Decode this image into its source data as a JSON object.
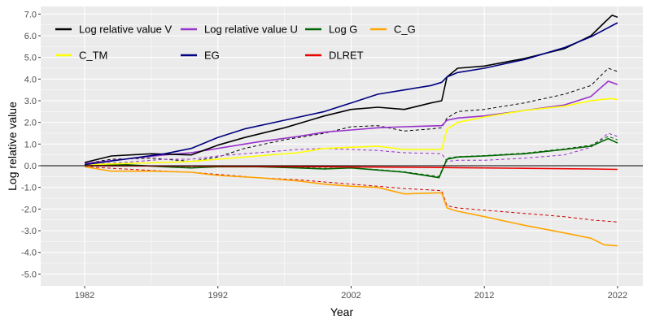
{
  "chart_data": {
    "type": "line",
    "title": "",
    "xlabel": "Year",
    "ylabel": "Log relative value",
    "xlim": [
      1978.7,
      2023.9
    ],
    "ylim": [
      -5.55,
      7.35
    ],
    "x_ticks": [
      1982,
      1992,
      2002,
      2012,
      2022
    ],
    "x_tick_labels": [
      "1982",
      "1992",
      "2002",
      "2012",
      "2022"
    ],
    "y_ticks": [
      -5,
      -4,
      -3,
      -2,
      -1,
      0,
      1,
      2,
      3,
      4,
      5,
      6,
      7
    ],
    "y_tick_labels": [
      "-5.0",
      "-4.0",
      "-3.0",
      "-2.0",
      "-1.0",
      "0.0",
      "1.0",
      "2.0",
      "3.0",
      "4.0",
      "5.0",
      "6.0",
      "7.0"
    ],
    "background": "#ebebeb",
    "grid_color": "#ffffff",
    "zero_line": 0,
    "legend_position": "top-left",
    "series": [
      {
        "name": "Log relative value V",
        "color": "#000000",
        "dashed": false,
        "in_legend": true,
        "x": [
          1982,
          1984,
          1987,
          1990,
          1992,
          1994,
          1997,
          2000,
          2002,
          2004,
          2006,
          2008,
          2008.8,
          2009.2,
          2010,
          2012,
          2015,
          2018,
          2020,
          2021,
          2021.6,
          2022
        ],
        "y": [
          0.15,
          0.45,
          0.55,
          0.5,
          0.95,
          1.3,
          1.75,
          2.3,
          2.6,
          2.7,
          2.6,
          2.9,
          3.0,
          4.1,
          4.5,
          4.6,
          4.95,
          5.4,
          6.0,
          6.6,
          6.95,
          6.85
        ]
      },
      {
        "name": "Log relative value V (dashed)",
        "color": "#000000",
        "dashed": true,
        "in_legend": false,
        "x": [
          1982,
          1984,
          1987,
          1990,
          1992,
          1994,
          1997,
          2000,
          2002,
          2004,
          2006,
          2008,
          2008.8,
          2009.2,
          2010,
          2012,
          2015,
          2018,
          2020,
          2021.3,
          2022
        ],
        "y": [
          0.1,
          0.3,
          0.35,
          0.2,
          0.4,
          0.8,
          1.2,
          1.5,
          1.8,
          1.85,
          1.6,
          1.7,
          1.75,
          2.2,
          2.5,
          2.6,
          2.9,
          3.3,
          3.7,
          4.5,
          4.35
        ]
      },
      {
        "name": "Log relative value U",
        "color": "#9932cc",
        "dashed": false,
        "in_legend": true,
        "x": [
          1982,
          1985,
          1988,
          1990,
          1992,
          1995,
          1998,
          2000,
          2002,
          2004,
          2006,
          2008.8,
          2009.2,
          2010,
          2012,
          2015,
          2018,
          2020,
          2021.3,
          2022
        ],
        "y": [
          0.1,
          0.3,
          0.5,
          0.6,
          0.8,
          1.1,
          1.35,
          1.55,
          1.65,
          1.75,
          1.8,
          1.85,
          2.1,
          2.2,
          2.3,
          2.55,
          2.8,
          3.2,
          3.9,
          3.75
        ]
      },
      {
        "name": "Log relative value U (dashed)",
        "color": "#9932cc",
        "dashed": true,
        "in_legend": false,
        "x": [
          1982,
          1985,
          1988,
          1990,
          1992,
          1995,
          1998,
          2000,
          2002,
          2004,
          2006,
          2008.8,
          2009.2,
          2010,
          2012,
          2015,
          2018,
          2020,
          2021.3,
          2022
        ],
        "y": [
          0.05,
          0.15,
          0.3,
          0.3,
          0.45,
          0.6,
          0.75,
          0.8,
          0.75,
          0.7,
          0.6,
          0.55,
          0.2,
          0.25,
          0.25,
          0.35,
          0.5,
          0.85,
          1.5,
          1.35
        ]
      },
      {
        "name": "Log G",
        "color": "#006400",
        "dashed": false,
        "in_legend": true,
        "x": [
          1982,
          1985,
          1988,
          1990,
          1992,
          1995,
          1998,
          2000,
          2002,
          2004,
          2006,
          2008.6,
          2009.2,
          2010,
          2012,
          2015,
          2018,
          2020,
          2021.3,
          2022
        ],
        "y": [
          0.0,
          0.05,
          -0.05,
          -0.1,
          -0.05,
          -0.05,
          -0.1,
          -0.15,
          -0.1,
          -0.2,
          -0.3,
          -0.55,
          0.3,
          0.4,
          0.45,
          0.55,
          0.75,
          0.9,
          1.25,
          1.05
        ]
      },
      {
        "name": "Log G (dashed)",
        "color": "#006400",
        "dashed": true,
        "in_legend": false,
        "x": [
          1982,
          1985,
          1988,
          1990,
          1992,
          1995,
          1998,
          2000,
          2002,
          2004,
          2006,
          2008.6,
          2009.2,
          2010,
          2012,
          2015,
          2018,
          2020,
          2021.3,
          2022
        ],
        "y": [
          0.0,
          0.03,
          -0.03,
          -0.08,
          -0.05,
          -0.05,
          -0.08,
          -0.12,
          -0.1,
          -0.18,
          -0.28,
          -0.5,
          0.35,
          0.42,
          0.47,
          0.58,
          0.78,
          0.95,
          1.35,
          1.2
        ]
      },
      {
        "name": "C_G",
        "color": "#ffa500",
        "dashed": false,
        "in_legend": true,
        "x": [
          1982,
          1984,
          1987,
          1990,
          1992,
          1995,
          1998,
          2000,
          2002,
          2004,
          2006,
          2008.8,
          2009.2,
          2010,
          2012,
          2015,
          2018,
          2020,
          2021,
          2022
        ],
        "y": [
          -0.05,
          -0.25,
          -0.25,
          -0.3,
          -0.45,
          -0.55,
          -0.7,
          -0.85,
          -0.95,
          -1.0,
          -1.3,
          -1.25,
          -1.95,
          -2.1,
          -2.35,
          -2.75,
          -3.1,
          -3.35,
          -3.65,
          -3.7
        ]
      },
      {
        "name": "C_G (dashed)",
        "color": "#cc0000",
        "dashed": true,
        "in_legend": false,
        "x": [
          1982,
          1985,
          1988,
          1990,
          1992,
          1995,
          1998,
          2000,
          2002,
          2004,
          2006,
          2008.8,
          2009.2,
          2010,
          2012,
          2015,
          2018,
          2020,
          2022
        ],
        "y": [
          -0.05,
          -0.15,
          -0.25,
          -0.3,
          -0.4,
          -0.55,
          -0.65,
          -0.75,
          -0.85,
          -0.95,
          -1.05,
          -1.15,
          -1.85,
          -1.95,
          -2.05,
          -2.2,
          -2.35,
          -2.5,
          -2.6
        ]
      },
      {
        "name": "C_TM",
        "color": "#ffff00",
        "dashed": false,
        "in_legend": true,
        "x": [
          1982,
          1985,
          1988,
          1990,
          1992,
          1995,
          1998,
          2000,
          2002,
          2004,
          2006,
          2008.8,
          2009.2,
          2010,
          2012,
          2015,
          2018,
          2020,
          2021.5,
          2022
        ],
        "y": [
          0.05,
          0.1,
          0.15,
          0.2,
          0.3,
          0.45,
          0.6,
          0.8,
          0.85,
          0.9,
          0.75,
          0.75,
          1.7,
          2.0,
          2.25,
          2.55,
          2.75,
          3.0,
          3.1,
          3.05
        ]
      },
      {
        "name": "EG",
        "color": "#000080",
        "dashed": false,
        "in_legend": true,
        "x": [
          1982,
          1985,
          1988,
          1990,
          1992,
          1994,
          1997,
          2000,
          2002,
          2004,
          2006,
          2008,
          2008.8,
          2009.2,
          2010,
          2012,
          2015,
          2018,
          2020,
          2022
        ],
        "y": [
          0.05,
          0.3,
          0.55,
          0.8,
          1.3,
          1.7,
          2.1,
          2.5,
          2.9,
          3.3,
          3.5,
          3.7,
          3.85,
          4.1,
          4.3,
          4.5,
          4.9,
          5.45,
          5.95,
          6.6
        ]
      },
      {
        "name": "DLRET",
        "color": "#ee0000",
        "dashed": false,
        "in_legend": true,
        "x": [
          1982,
          1990,
          2000,
          2008,
          2010,
          2015,
          2020,
          2022
        ],
        "y": [
          0.0,
          -0.02,
          -0.05,
          -0.08,
          -0.09,
          -0.12,
          -0.15,
          -0.17
        ]
      }
    ]
  }
}
